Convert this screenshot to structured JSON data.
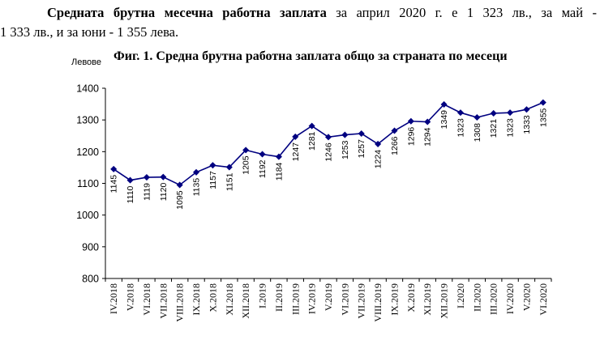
{
  "paragraph": {
    "bold_lead": "Средната брутна месечна работна заплата",
    "line1_rest": "за април 2020 г. е 1 323 лв., за май -",
    "line2": "1 333 лв., и за юни - 1 355 лева."
  },
  "chart_data": {
    "type": "line",
    "title": "Фиг. 1. Средна брутна работна заплата общо за страната по месеци",
    "ylabel": "Левове",
    "xlabel": "",
    "ylim": [
      800,
      1400
    ],
    "yticks": [
      800,
      900,
      1000,
      1100,
      1200,
      1300,
      1400
    ],
    "grid": false,
    "legend": "none",
    "line_color": "#000080",
    "categories": [
      "IV.2018",
      "V.2018",
      "VI.2018",
      "VII.2018",
      "VIII.2018",
      "IX.2018",
      "X.2018",
      "XI.2018",
      "XII.2018",
      "I.2019",
      "II.2019",
      "III.2019",
      "IV.2019",
      "V.2019",
      "VI.2019",
      "VII.2019",
      "VIII.2019",
      "IX.2019",
      "X.2019",
      "XI.2019",
      "XII.2019",
      "I.2020",
      "II.2020",
      "III.2020",
      "IV.2020",
      "V.2020",
      "VI.2020"
    ],
    "values": [
      1145,
      1110,
      1119,
      1120,
      1095,
      1135,
      1157,
      1151,
      1205,
      1192,
      1184,
      1247,
      1281,
      1246,
      1253,
      1257,
      1224,
      1266,
      1296,
      1294,
      1349,
      1323,
      1308,
      1321,
      1323,
      1333,
      1355
    ]
  }
}
